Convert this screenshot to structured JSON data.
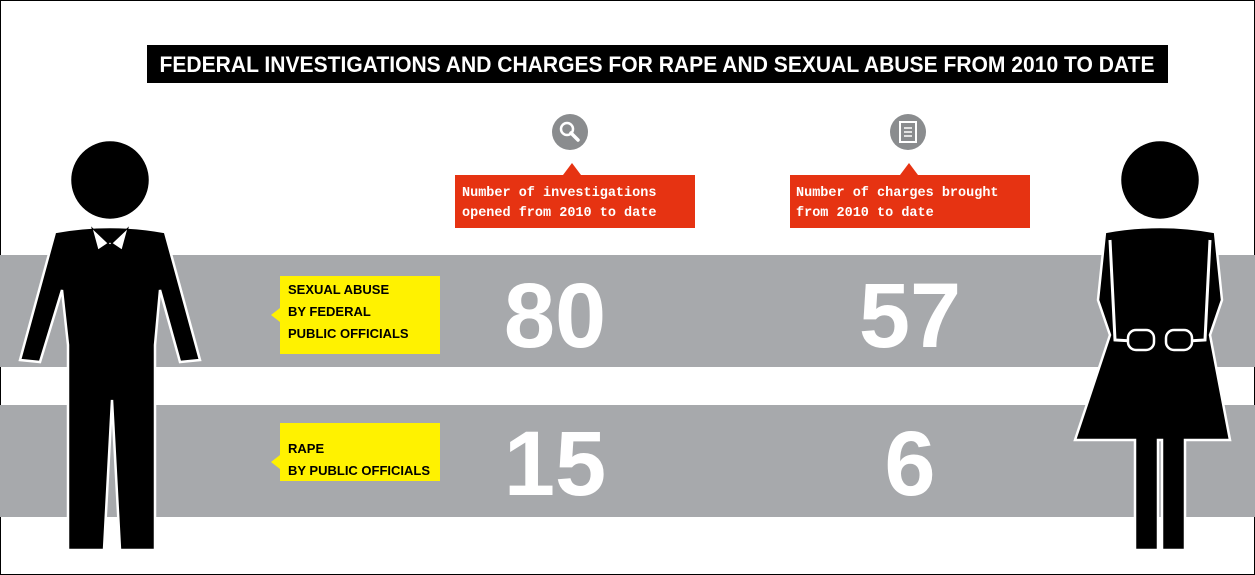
{
  "title": "FEDERAL INVESTIGATIONS AND CHARGES FOR RAPE AND SEXUAL ABUSE FROM 2010 TO DATE",
  "columns": [
    {
      "lines": [
        "Number of investigations",
        "opened from 2010 to date"
      ]
    },
    {
      "lines": [
        "Number of charges brought",
        "from 2010 to date"
      ]
    }
  ],
  "rows": [
    {
      "lines": [
        "SEXUAL ABUSE",
        "BY FEDERAL",
        "PUBLIC OFFICIALS"
      ],
      "values": [
        80,
        57
      ]
    },
    {
      "lines": [
        "RAPE",
        "BY PUBLIC OFFICIALS"
      ],
      "values": [
        15,
        6
      ]
    }
  ]
}
